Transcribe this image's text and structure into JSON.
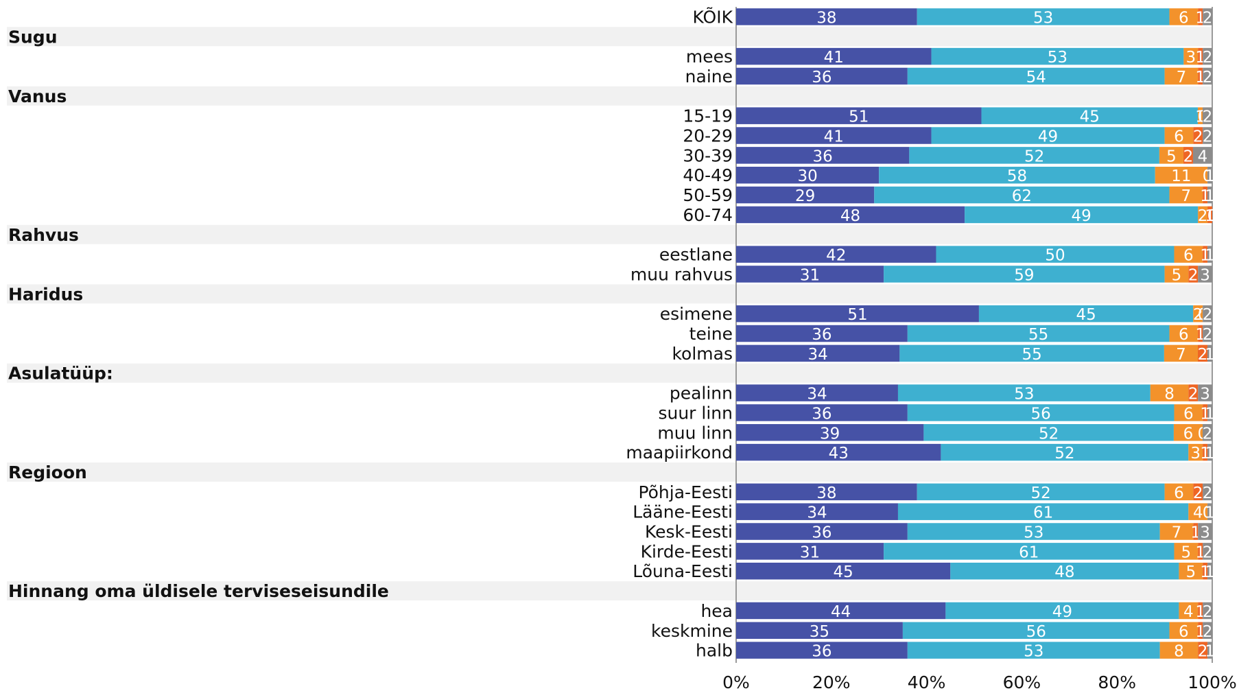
{
  "chart_data": {
    "type": "bar",
    "orientation": "horizontal",
    "stacked": true,
    "percent_stacked": true,
    "x_ticks": [
      "0%",
      "20%",
      "40%",
      "60%",
      "80%",
      "100%"
    ],
    "xlim": [
      0,
      100
    ],
    "grid": false,
    "legend": "none",
    "colors": [
      "#4652A6",
      "#3EB0D0",
      "#F3922B",
      "#EE6524",
      "#8C8C8C"
    ],
    "rows": [
      {
        "label": "KÕIK",
        "values": [
          38,
          53,
          6,
          1,
          2
        ]
      },
      {
        "group": "Sugu"
      },
      {
        "label": "mees",
        "values": [
          41,
          53,
          3,
          1,
          2
        ]
      },
      {
        "label": "naine",
        "values": [
          36,
          54,
          7,
          1,
          2
        ]
      },
      {
        "group": "Vanus"
      },
      {
        "label": "15-19",
        "values": [
          51,
          45,
          1,
          0,
          2
        ]
      },
      {
        "label": "20-29",
        "values": [
          41,
          49,
          6,
          2,
          2
        ]
      },
      {
        "label": "30-39",
        "values": [
          36,
          52,
          5,
          2,
          4
        ]
      },
      {
        "label": "40-49",
        "values": [
          30,
          58,
          11,
          0,
          1
        ]
      },
      {
        "label": "50-59",
        "values": [
          29,
          62,
          7,
          1,
          1
        ]
      },
      {
        "label": "60-74",
        "values": [
          48,
          49,
          2,
          1,
          0
        ]
      },
      {
        "group": "Rahvus"
      },
      {
        "label": "eestlane",
        "values": [
          42,
          50,
          6,
          1,
          1
        ]
      },
      {
        "label": "muu rahvus",
        "values": [
          31,
          59,
          5,
          2,
          3
        ]
      },
      {
        "group": "Haridus"
      },
      {
        "label": "esimene",
        "values": [
          51,
          45,
          2,
          0,
          2
        ]
      },
      {
        "label": "teine",
        "values": [
          36,
          55,
          6,
          1,
          2
        ]
      },
      {
        "label": "kolmas",
        "values": [
          34,
          55,
          7,
          2,
          1
        ]
      },
      {
        "group": "Asulatüüp:"
      },
      {
        "label": "pealinn",
        "values": [
          34,
          53,
          8,
          2,
          3
        ]
      },
      {
        "label": "suur linn",
        "values": [
          36,
          56,
          6,
          1,
          1
        ]
      },
      {
        "label": "muu linn",
        "values": [
          39,
          52,
          6,
          0,
          2
        ]
      },
      {
        "label": "maapiirkond",
        "values": [
          43,
          52,
          3,
          1,
          1
        ]
      },
      {
        "group": "Regioon"
      },
      {
        "label": "Põhja-Eesti",
        "values": [
          38,
          52,
          6,
          2,
          2
        ]
      },
      {
        "label": "Lääne-Eesti",
        "values": [
          34,
          61,
          4,
          0,
          1
        ]
      },
      {
        "label": "Kesk-Eesti",
        "values": [
          36,
          53,
          7,
          1,
          3
        ]
      },
      {
        "label": "Kirde-Eesti",
        "values": [
          31,
          61,
          5,
          1,
          2
        ]
      },
      {
        "label": "Lõuna-Eesti",
        "values": [
          45,
          48,
          5,
          1,
          1
        ]
      },
      {
        "group": "Hinnang oma üldisele terviseseisundile"
      },
      {
        "label": "hea",
        "values": [
          44,
          49,
          4,
          1,
          2
        ]
      },
      {
        "label": "keskmine",
        "values": [
          35,
          56,
          6,
          1,
          2
        ]
      },
      {
        "label": "halb",
        "values": [
          36,
          53,
          8,
          2,
          1
        ]
      }
    ]
  }
}
